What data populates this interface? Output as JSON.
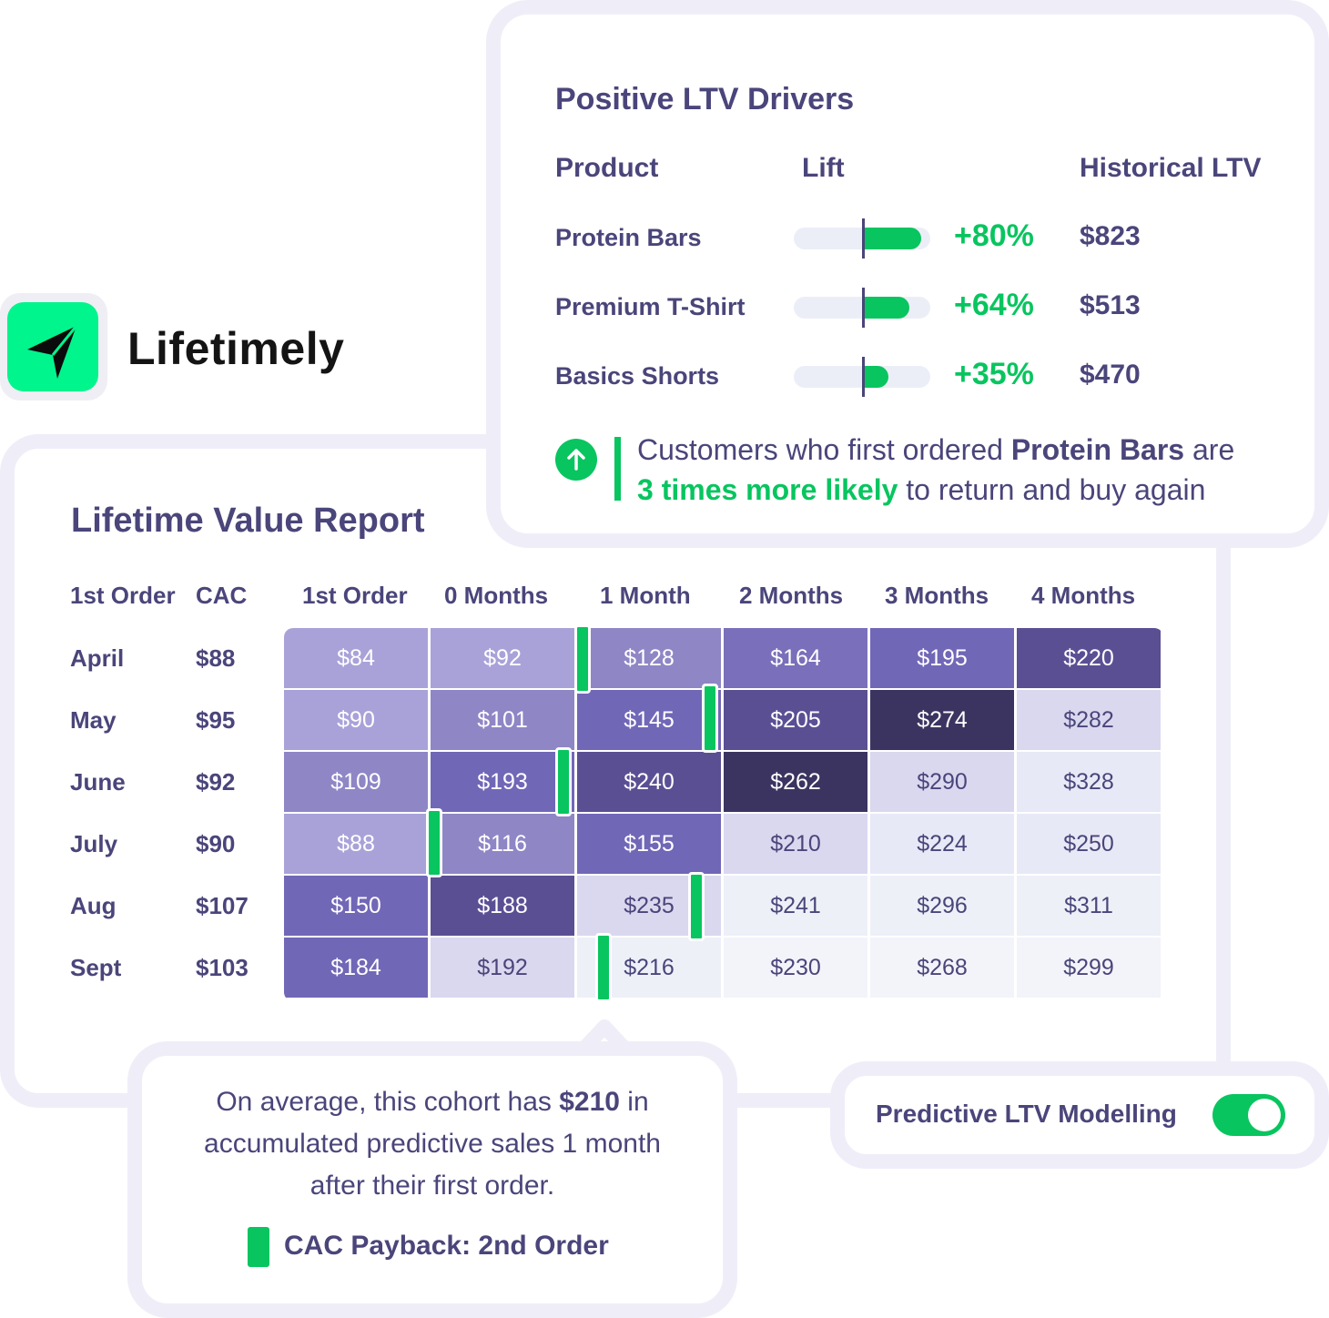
{
  "brand": {
    "name": "Lifetimely",
    "logo_icon": "paper-plane-icon",
    "accent_color": "#00f58c"
  },
  "report": {
    "title": "Lifetime Value Report",
    "columns": [
      "1st Order",
      "CAC",
      "1st Order",
      "0 Months",
      "1 Month",
      "2 Months",
      "3 Months",
      "4 Months"
    ],
    "rows": [
      {
        "label": "April",
        "cac": "$88",
        "values": [
          "$84",
          "$92",
          "$128",
          "$164",
          "$195",
          "$220"
        ]
      },
      {
        "label": "May",
        "cac": "$95",
        "values": [
          "$90",
          "$101",
          "$145",
          "$205",
          "$274",
          "$282"
        ]
      },
      {
        "label": "June",
        "cac": "$92",
        "values": [
          "$109",
          "$193",
          "$240",
          "$262",
          "$290",
          "$328"
        ]
      },
      {
        "label": "July",
        "cac": "$90",
        "values": [
          "$88",
          "$116",
          "$155",
          "$210",
          "$224",
          "$250"
        ]
      },
      {
        "label": "Aug",
        "cac": "$107",
        "values": [
          "$150",
          "$188",
          "$235",
          "$241",
          "$296",
          "$311"
        ]
      },
      {
        "label": "Sept",
        "cac": "$103",
        "values": [
          "$184",
          "$192",
          "$216",
          "$230",
          "$268",
          "$299"
        ]
      }
    ],
    "cac_payback_color": "#08c55f"
  },
  "drivers": {
    "title": "Positive LTV Drivers",
    "headers": {
      "product": "Product",
      "lift": "Lift",
      "ltv": "Historical LTV"
    },
    "items": [
      {
        "product": "Protein Bars",
        "lift": "+80%",
        "lift_value": 80,
        "ltv": "$823"
      },
      {
        "product": "Premium T-Shirt",
        "lift": "+64%",
        "lift_value": 64,
        "ltv": "$513"
      },
      {
        "product": "Basics Shorts",
        "lift": "+35%",
        "lift_value": 35,
        "ltv": "$470"
      }
    ],
    "insight": {
      "icon": "arrow-up-circle-icon",
      "part1": "Customers who first ordered ",
      "product": "Protein Bars",
      "part2": " are",
      "highlight": "3 times more likely",
      "part3": " to return and buy again"
    }
  },
  "callout": {
    "line1_pre": "On average, this cohort has ",
    "line1_value": "$210",
    "line1_post": " in",
    "line2": "accumulated predictive sales 1 month",
    "line3": "after their first order.",
    "legend": "CAC Payback: 2nd Order"
  },
  "toggle": {
    "label": "Predictive LTV Modelling",
    "on": true
  }
}
